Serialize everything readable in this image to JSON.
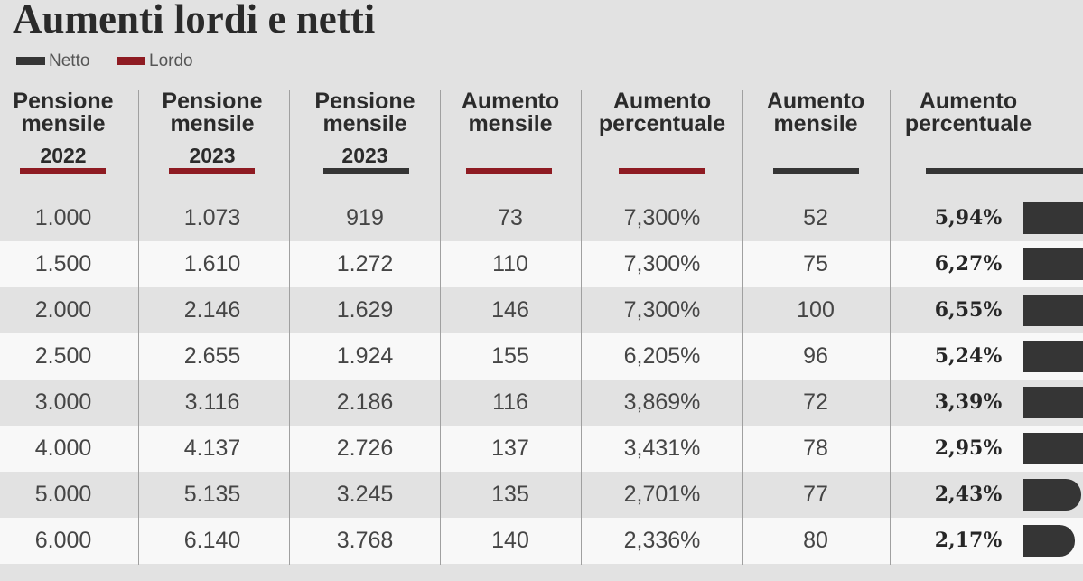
{
  "chart_data": {
    "type": "table",
    "title": "Aumenti lordi e netti",
    "legend": [
      {
        "label": "Netto",
        "color": "#353535"
      },
      {
        "label": "Lordo",
        "color": "#8e1b22"
      }
    ],
    "columns": [
      {
        "header": [
          "Pensione",
          "mensile"
        ],
        "year": "2022",
        "underline_color": "#8e1b22"
      },
      {
        "header": [
          "Pensione",
          "mensile"
        ],
        "year": "2023",
        "underline_color": "#8e1b22"
      },
      {
        "header": [
          "Pensione",
          "mensile"
        ],
        "year": "2023",
        "underline_color": "#353535"
      },
      {
        "header": [
          "Aumento",
          "mensile"
        ],
        "underline_color": "#8e1b22"
      },
      {
        "header": [
          "Aumento",
          "percentuale"
        ],
        "underline_color": "#8e1b22"
      },
      {
        "header": [
          "Aumento",
          "mensile"
        ],
        "underline_color": "#353535"
      },
      {
        "header": [
          "Aumento",
          "percentuale"
        ],
        "underline_color": "#353535"
      }
    ],
    "rows": [
      [
        "1.000",
        "1.073",
        "919",
        "73",
        "7,300%",
        "52",
        "5,94%"
      ],
      [
        "1.500",
        "1.610",
        "1.272",
        "110",
        "7,300%",
        "75",
        "6,27%"
      ],
      [
        "2.000",
        "2.146",
        "1.629",
        "146",
        "7,300%",
        "100",
        "6,55%"
      ],
      [
        "2.500",
        "2.655",
        "1.924",
        "155",
        "6,205%",
        "96",
        "5,24%"
      ],
      [
        "3.000",
        "3.116",
        "2.186",
        "116",
        "3,869%",
        "72",
        "3,39%"
      ],
      [
        "4.000",
        "4.137",
        "2.726",
        "137",
        "3,431%",
        "78",
        "2,95%"
      ],
      [
        "5.000",
        "5.135",
        "3.245",
        "135",
        "2,701%",
        "77",
        "2,43%"
      ],
      [
        "6.000",
        "6.140",
        "3.768",
        "140",
        "2,336%",
        "80",
        "2,17%"
      ]
    ],
    "bars": {
      "color": "#353535",
      "values": [
        5.94,
        6.27,
        6.55,
        5.24,
        3.39,
        2.95,
        2.43,
        2.17
      ]
    }
  }
}
